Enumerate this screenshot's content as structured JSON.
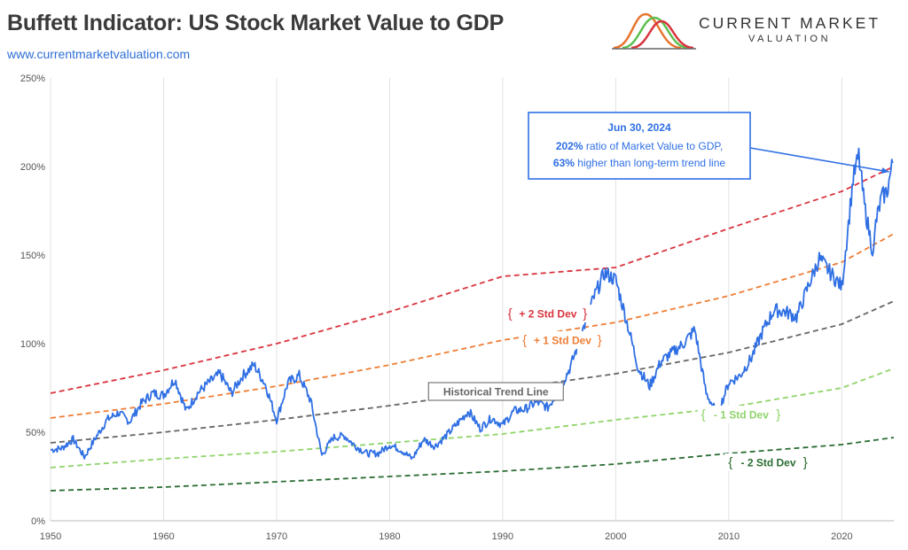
{
  "header": {
    "title": "Buffett Indicator: US Stock Market Value to GDP",
    "url": "www.currentmarketvaluation.com",
    "logo_line1": "CURRENT MARKET",
    "logo_line2": "VALUATION"
  },
  "colors": {
    "series": "#2f6fe4",
    "plus2": "#d9343f",
    "plus1": "#ee7d34",
    "trend": "#666666",
    "minus1": "#8fd46a",
    "minus2": "#2a6d32",
    "callout_border": "#2f6fe4",
    "callout_text": "#2f6fe4",
    "grid": "#e2e2e2"
  },
  "chart_data": {
    "type": "line",
    "title": "Buffett Indicator: US Stock Market Value to GDP",
    "xlabel": "",
    "ylabel": "",
    "xlim": [
      1950,
      2024.6
    ],
    "ylim": [
      0,
      250
    ],
    "x_ticks": [
      1950,
      1960,
      1970,
      1980,
      1990,
      2000,
      2010,
      2020
    ],
    "y_ticks": [
      0,
      50,
      100,
      150,
      200,
      250
    ],
    "y_tick_labels": [
      "0%",
      "50%",
      "100%",
      "150%",
      "200%",
      "250%"
    ],
    "grid": "vertical",
    "series": [
      {
        "name": "",
        "style": "solid",
        "points": [
          [
            1950,
            40
          ],
          [
            1951,
            41
          ],
          [
            1952,
            46
          ],
          [
            1953,
            36
          ],
          [
            1954,
            47
          ],
          [
            1955,
            57
          ],
          [
            1956,
            61
          ],
          [
            1957,
            56
          ],
          [
            1958,
            66
          ],
          [
            1959,
            72
          ],
          [
            1960,
            71
          ],
          [
            1961,
            80
          ],
          [
            1962,
            62
          ],
          [
            1963,
            72
          ],
          [
            1964,
            78
          ],
          [
            1965,
            83
          ],
          [
            1966,
            72
          ],
          [
            1967,
            82
          ],
          [
            1968,
            88
          ],
          [
            1969,
            77
          ],
          [
            1970,
            57
          ],
          [
            1971,
            78
          ],
          [
            1972,
            82
          ],
          [
            1973,
            68
          ],
          [
            1974,
            37
          ],
          [
            1975,
            47
          ],
          [
            1976,
            48
          ],
          [
            1977,
            42
          ],
          [
            1978,
            38
          ],
          [
            1979,
            38
          ],
          [
            1980,
            43
          ],
          [
            1981,
            40
          ],
          [
            1982,
            35
          ],
          [
            1983,
            46
          ],
          [
            1984,
            42
          ],
          [
            1985,
            48
          ],
          [
            1986,
            55
          ],
          [
            1987,
            62
          ],
          [
            1988,
            52
          ],
          [
            1989,
            58
          ],
          [
            1990,
            54
          ],
          [
            1991,
            62
          ],
          [
            1992,
            63
          ],
          [
            1993,
            67
          ],
          [
            1994,
            64
          ],
          [
            1995,
            74
          ],
          [
            1996,
            87
          ],
          [
            1997,
            106
          ],
          [
            1998,
            125
          ],
          [
            1999,
            140
          ],
          [
            2000,
            136
          ],
          [
            2001,
            112
          ],
          [
            2002,
            86
          ],
          [
            2003,
            76
          ],
          [
            2004,
            90
          ],
          [
            2005,
            95
          ],
          [
            2006,
            100
          ],
          [
            2007,
            108
          ],
          [
            2008,
            72
          ],
          [
            2009,
            60
          ],
          [
            2010,
            78
          ],
          [
            2011,
            82
          ],
          [
            2012,
            92
          ],
          [
            2013,
            107
          ],
          [
            2014,
            119
          ],
          [
            2015,
            118
          ],
          [
            2016,
            115
          ],
          [
            2017,
            132
          ],
          [
            2018,
            148
          ],
          [
            2019,
            140
          ],
          [
            2020,
            132
          ],
          [
            2021,
            193
          ],
          [
            2021.5,
            206
          ],
          [
            2022,
            178
          ],
          [
            2022.8,
            150
          ],
          [
            2023,
            168
          ],
          [
            2023.5,
            182
          ],
          [
            2024,
            186
          ],
          [
            2024.5,
            202
          ]
        ]
      },
      {
        "name": "+ 2 Std Dev",
        "style": "dashed",
        "color_key": "plus2",
        "points": [
          [
            1950,
            72
          ],
          [
            1960,
            85
          ],
          [
            1970,
            100
          ],
          [
            1980,
            118
          ],
          [
            1990,
            138
          ],
          [
            2000,
            143
          ],
          [
            2010,
            165
          ],
          [
            2020,
            186
          ],
          [
            2024.6,
            200
          ]
        ]
      },
      {
        "name": "+ 1 Std Dev",
        "style": "dashed",
        "color_key": "plus1",
        "points": [
          [
            1950,
            58
          ],
          [
            1960,
            66
          ],
          [
            1970,
            76
          ],
          [
            1980,
            88
          ],
          [
            1990,
            102
          ],
          [
            2000,
            112
          ],
          [
            2010,
            127
          ],
          [
            2020,
            146
          ],
          [
            2024.6,
            162
          ]
        ]
      },
      {
        "name": "Historical Trend Line",
        "style": "dashed",
        "color_key": "trend",
        "points": [
          [
            1950,
            44
          ],
          [
            1960,
            50
          ],
          [
            1970,
            57
          ],
          [
            1980,
            65
          ],
          [
            1990,
            74
          ],
          [
            2000,
            83
          ],
          [
            2010,
            95
          ],
          [
            2020,
            111
          ],
          [
            2024.6,
            124
          ]
        ]
      },
      {
        "name": "- 1 Std Dev",
        "style": "dashed",
        "color_key": "minus1",
        "points": [
          [
            1950,
            30
          ],
          [
            1960,
            35
          ],
          [
            1970,
            39
          ],
          [
            1980,
            44
          ],
          [
            1990,
            49
          ],
          [
            2000,
            57
          ],
          [
            2010,
            64
          ],
          [
            2020,
            75
          ],
          [
            2024.6,
            86
          ]
        ]
      },
      {
        "name": "- 2 Std Dev",
        "style": "dashed",
        "color_key": "minus2",
        "points": [
          [
            1950,
            17
          ],
          [
            1960,
            19
          ],
          [
            1970,
            22
          ],
          [
            1980,
            25
          ],
          [
            1990,
            28
          ],
          [
            2000,
            32
          ],
          [
            2010,
            38
          ],
          [
            2020,
            43
          ],
          [
            2024.6,
            47
          ]
        ]
      }
    ],
    "band_labels": [
      {
        "text": "+ 2 Std Dev",
        "color_key": "plus2",
        "x": 1994,
        "y": 117
      },
      {
        "text": "+ 1 Std Dev",
        "color_key": "plus1",
        "x": 1995.3,
        "y": 102
      },
      {
        "text": "Historical Trend Line",
        "color_key": "trend",
        "x": 1989.4,
        "y": 73,
        "boxed": true
      },
      {
        "text": "- 1 Std Dev",
        "color_key": "minus1",
        "x": 2011.1,
        "y": 60
      },
      {
        "text": "- 2 Std Dev",
        "color_key": "minus2",
        "x": 2013.5,
        "y": 33
      }
    ],
    "annotation": {
      "date": "Jun 30, 2024",
      "line2_bold": "202%",
      "line2_rest": " ratio of Market Value to GDP,",
      "line3_bold": "63%",
      "line3_rest": " higher than long-term trend line",
      "target": [
        2024.5,
        197
      ]
    }
  }
}
